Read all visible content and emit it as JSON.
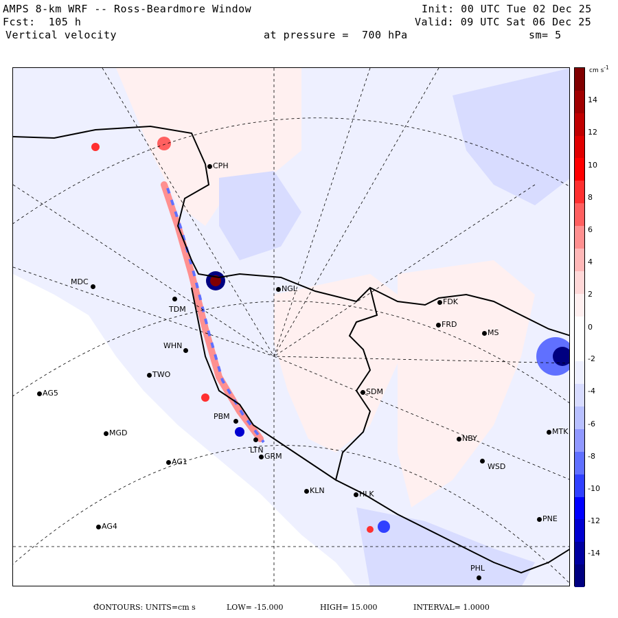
{
  "header": {
    "title": "AMPS 8-km WRF -- Ross-Beardmore Window",
    "forecast": "Fcst:  105 h",
    "field": "Vertical velocity",
    "init": "Init: 00 UTC Tue 02 Dec 25",
    "valid": "Valid: 09 UTC Sat 06 Dec 25",
    "pressure": "at pressure =  700 hPa",
    "smoothing": "sm= 5"
  },
  "colorbar": {
    "units": "cm s",
    "units_sup": "-1",
    "tick_labels": [
      "14",
      "12",
      "10",
      "8",
      "6",
      "4",
      "2",
      "0",
      "-2",
      "-4",
      "-6",
      "-8",
      "-10",
      "-12",
      "-14"
    ],
    "range": [
      -15,
      15
    ],
    "colors_top_to_bottom": [
      "#800000",
      "#a00000",
      "#c00000",
      "#e00000",
      "#ff0000",
      "#ff3030",
      "#ff6060",
      "#ff9090",
      "#ffb8b8",
      "#ffd8d8",
      "#fff0f0",
      "#ffffff",
      "#ffffff",
      "#eef0ff",
      "#d8dcff",
      "#b8c0ff",
      "#9098ff",
      "#6070ff",
      "#3040ff",
      "#0000ff",
      "#0000d0",
      "#0000a0",
      "#000080"
    ]
  },
  "stations": [
    {
      "id": "CPH",
      "label": "CPH"
    },
    {
      "id": "MDC",
      "label": "MDC"
    },
    {
      "id": "NGL",
      "label": "NGL"
    },
    {
      "id": "TDM",
      "label": "TDM"
    },
    {
      "id": "FDK",
      "label": "FDK"
    },
    {
      "id": "FRD",
      "label": "FRD"
    },
    {
      "id": "MSP",
      "label": "MS"
    },
    {
      "id": "WHN",
      "label": "WHN"
    },
    {
      "id": "TWO",
      "label": "TWO"
    },
    {
      "id": "SDM",
      "label": "SDM"
    },
    {
      "id": "AG5",
      "label": "AG5"
    },
    {
      "id": "MGD",
      "label": "MGD"
    },
    {
      "id": "PBM",
      "label": "PBM"
    },
    {
      "id": "LTN",
      "label": "LTN"
    },
    {
      "id": "GRM",
      "label": "GRM"
    },
    {
      "id": "AG1",
      "label": "AG1"
    },
    {
      "id": "NBY",
      "label": "NBY"
    },
    {
      "id": "MTK",
      "label": "MTK"
    },
    {
      "id": "WSD",
      "label": "WSD"
    },
    {
      "id": "KLN",
      "label": "KLN"
    },
    {
      "id": "HLK",
      "label": "HLK"
    },
    {
      "id": "AG4",
      "label": "AG4"
    },
    {
      "id": "PNE",
      "label": "PNE"
    },
    {
      "id": "PHL",
      "label": "PHL"
    }
  ],
  "footer": {
    "contours": "CONTOURS:  UNITS=cm s",
    "units_sup": "-1",
    "low": "LOW= -15.000",
    "high": "HIGH=  15.000",
    "interval": "INTERVAL=   1.0000"
  }
}
